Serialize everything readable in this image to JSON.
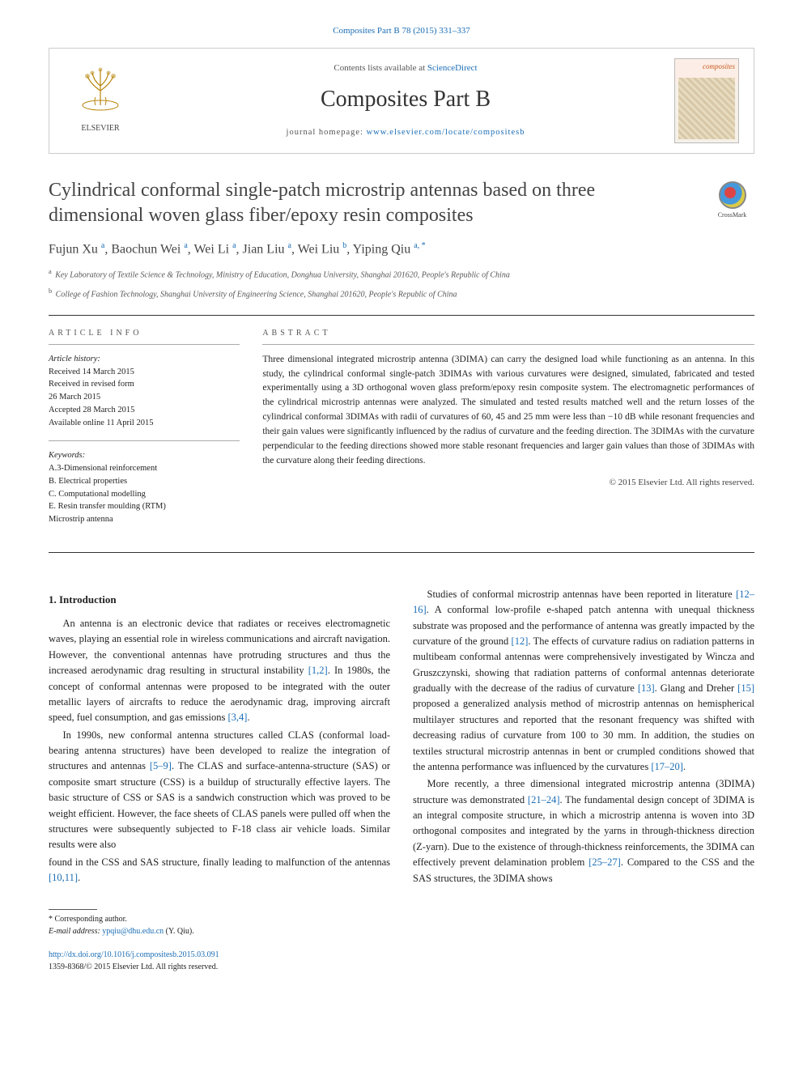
{
  "citation": "Composites Part B 78 (2015) 331–337",
  "header": {
    "publisher": "ELSEVIER",
    "contents_prefix": "Contents lists available at ",
    "contents_link": "ScienceDirect",
    "journal": "Composites Part B",
    "homepage_prefix": "journal homepage: ",
    "homepage_url": "www.elsevier.com/locate/compositesb",
    "cover_label": "composites"
  },
  "title": "Cylindrical conformal single-patch microstrip antennas based on three dimensional woven glass fiber/epoxy resin composites",
  "crossmark": "CrossMark",
  "authors_html": "Fujun Xu <sup>a</sup>, Baochun Wei <sup>a</sup>, Wei Li <sup>a</sup>, Jian Liu <sup>a</sup>, Wei Liu <sup>b</sup>, Yiping Qiu <sup>a, *</sup>",
  "affiliations": [
    {
      "sup": "a",
      "text": "Key Laboratory of Textile Science & Technology, Ministry of Education, Donghua University, Shanghai 201620, People's Republic of China"
    },
    {
      "sup": "b",
      "text": "College of Fashion Technology, Shanghai University of Engineering Science, Shanghai 201620, People's Republic of China"
    }
  ],
  "article_info": {
    "label": "ARTICLE INFO",
    "history_label": "Article history:",
    "history": [
      "Received 14 March 2015",
      "Received in revised form",
      "26 March 2015",
      "Accepted 28 March 2015",
      "Available online 11 April 2015"
    ],
    "keywords_label": "Keywords:",
    "keywords": [
      "A.3-Dimensional reinforcement",
      "B. Electrical properties",
      "C. Computational modelling",
      "E. Resin transfer moulding (RTM)",
      "Microstrip antenna"
    ]
  },
  "abstract": {
    "label": "ABSTRACT",
    "text": "Three dimensional integrated microstrip antenna (3DIMA) can carry the designed load while functioning as an antenna. In this study, the cylindrical conformal single-patch 3DIMAs with various curvatures were designed, simulated, fabricated and tested experimentally using a 3D orthogonal woven glass preform/epoxy resin composite system. The electromagnetic performances of the cylindrical microstrip antennas were analyzed. The simulated and tested results matched well and the return losses of the cylindrical conformal 3DIMAs with radii of curvatures of 60, 45 and 25 mm were less than −10 dB while resonant frequencies and their gain values were significantly influenced by the radius of curvature and the feeding direction. The 3DIMAs with the curvature perpendicular to the feeding directions showed more stable resonant frequencies and larger gain values than those of 3DIMAs with the curvature along their feeding directions.",
    "copyright": "© 2015 Elsevier Ltd. All rights reserved."
  },
  "section1": {
    "heading": "1. Introduction",
    "p1_a": "An antenna is an electronic device that radiates or receives electromagnetic waves, playing an essential role in wireless communications and aircraft navigation. However, the conventional antennas have protruding structures and thus the increased aerodynamic drag resulting in structural instability ",
    "p1_ref1": "[1,2]",
    "p1_b": ". In 1980s, the concept of conformal antennas were proposed to be integrated with the outer metallic layers of aircrafts to reduce the aerodynamic drag, improving aircraft speed, fuel consumption, and gas emissions ",
    "p1_ref2": "[3,4]",
    "p1_c": ".",
    "p2_a": "In 1990s, new conformal antenna structures called CLAS (conformal load-bearing antenna structures) have been developed to realize the integration of structures and antennas ",
    "p2_ref1": "[5–9]",
    "p2_b": ". The CLAS and surface-antenna-structure (SAS) or composite smart structure (CSS) is a buildup of structurally effective layers. The basic structure of CSS or SAS is a sandwich construction which was proved to be weight efficient. However, the face sheets of CLAS panels were pulled off when the structures were subsequently subjected to F-18 class air vehicle loads. Similar results were also ",
    "p2_c": "found in the CSS and SAS structure, finally leading to malfunction of the antennas ",
    "p2_ref2": "[10,11]",
    "p2_d": ".",
    "p3_a": "Studies of conformal microstrip antennas have been reported in literature ",
    "p3_ref1": "[12–16]",
    "p3_b": ". A conformal low-profile e-shaped patch antenna with unequal thickness substrate was proposed and the performance of antenna was greatly impacted by the curvature of the ground ",
    "p3_ref2": "[12]",
    "p3_c": ". The effects of curvature radius on radiation patterns in multibeam conformal antennas were comprehensively investigated by Wincza and Gruszczynski, showing that radiation patterns of conformal antennas deteriorate gradually with the decrease of the radius of curvature ",
    "p3_ref3": "[13]",
    "p3_d": ". Glang and Dreher ",
    "p3_ref4": "[15]",
    "p3_e": " proposed a generalized analysis method of microstrip antennas on hemispherical multilayer structures and reported that the resonant frequency was shifted with decreasing radius of curvature from 100 to 30 mm. In addition, the studies on textiles structural microstrip antennas in bent or crumpled conditions showed that the antenna performance was influenced by the curvatures ",
    "p3_ref5": "[17–20]",
    "p3_f": ".",
    "p4_a": "More recently, a three dimensional integrated microstrip antenna (3DIMA) structure was demonstrated ",
    "p4_ref1": "[21–24]",
    "p4_b": ". The fundamental design concept of 3DIMA is an integral composite structure, in which a microstrip antenna is woven into 3D orthogonal composites and integrated by the yarns in through-thickness direction (Z-yarn). Due to the existence of through-thickness reinforcements, the 3DIMA can effectively prevent delamination problem ",
    "p4_ref2": "[25–27]",
    "p4_c": ". Compared to the CSS and the SAS structures, the 3DIMA shows"
  },
  "footer": {
    "corr_label": "* Corresponding author.",
    "email_label": "E-mail address: ",
    "email": "ypqiu@dhu.edu.cn",
    "email_who": " (Y. Qiu).",
    "doi": "http://dx.doi.org/10.1016/j.compositesb.2015.03.091",
    "issn_line": "1359-8368/© 2015 Elsevier Ltd. All rights reserved."
  },
  "colors": {
    "link": "#1a6db5",
    "text": "#222222",
    "muted": "#555555",
    "rule": "#333333"
  }
}
